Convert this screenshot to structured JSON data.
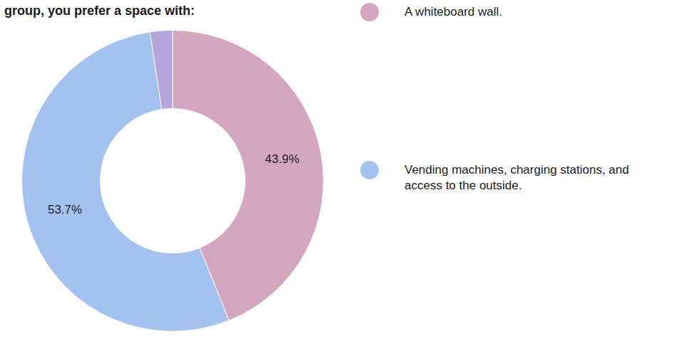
{
  "chart_data": {
    "type": "doughnut",
    "title": "group, you prefer a space with:",
    "categories": [
      "A whiteboard wall.",
      "Vending machines, charging stations, and access to the outside.",
      null
    ],
    "values": [
      43.9,
      53.7,
      2.4
    ],
    "value_labels": [
      "43.9%",
      "53.7%",
      null
    ],
    "colors": [
      "#d4a5be",
      "#a4c2f0",
      "#b3a4dc"
    ],
    "data_labels": true,
    "legend": "right"
  }
}
